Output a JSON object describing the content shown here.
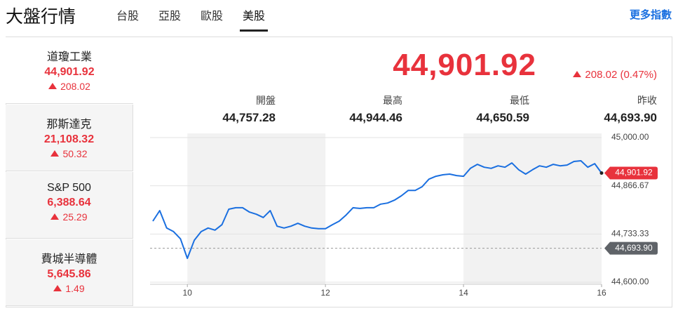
{
  "header": {
    "title": "大盤行情",
    "tabs": [
      "台股",
      "亞股",
      "歐股",
      "美股"
    ],
    "active_tab": 3,
    "more_link": "更多指數"
  },
  "indices": [
    {
      "name": "道瓊工業",
      "value": "44,901.92",
      "change": "208.02"
    },
    {
      "name": "那斯達克",
      "value": "21,108.32",
      "change": "50.32"
    },
    {
      "name": "S&P 500",
      "value": "6,388.64",
      "change": "25.29"
    },
    {
      "name": "費城半導體",
      "value": "5,645.86",
      "change": "1.49"
    }
  ],
  "selected_index": 0,
  "quote": {
    "price": "44,901.92",
    "change": "208.02 (0.47%)",
    "stats": [
      {
        "label": "開盤",
        "value": "44,757.28"
      },
      {
        "label": "最高",
        "value": "44,944.46"
      },
      {
        "label": "最低",
        "value": "44,650.59"
      },
      {
        "label": "昨收",
        "value": "44,693.90"
      }
    ]
  },
  "chart_data": {
    "type": "line",
    "x": [
      9.5,
      9.6,
      9.7,
      9.8,
      9.9,
      10.0,
      10.1,
      10.2,
      10.3,
      10.4,
      10.5,
      10.6,
      10.7,
      10.8,
      10.9,
      11.0,
      11.1,
      11.2,
      11.3,
      11.4,
      11.5,
      11.6,
      11.7,
      11.8,
      11.9,
      12.0,
      12.1,
      12.2,
      12.3,
      12.4,
      12.5,
      12.6,
      12.7,
      12.8,
      12.9,
      13.0,
      13.1,
      13.2,
      13.3,
      13.4,
      13.5,
      13.6,
      13.7,
      13.8,
      13.9,
      14.0,
      14.1,
      14.2,
      14.3,
      14.4,
      14.5,
      14.6,
      14.7,
      14.8,
      14.9,
      15.0,
      15.1,
      15.2,
      15.3,
      15.4,
      15.5,
      15.6,
      15.7,
      15.8,
      15.9,
      16.0
    ],
    "series": [
      {
        "color": "#1a6fe0",
        "values": [
          44769,
          44798,
          44750,
          44740,
          44720,
          44666,
          44716,
          44740,
          44750,
          44744,
          44759,
          44802,
          44806,
          44806,
          44794,
          44788,
          44779,
          44798,
          44755,
          44750,
          44755,
          44763,
          44755,
          44750,
          44748,
          44748,
          44759,
          44769,
          44786,
          44806,
          44804,
          44806,
          44806,
          44816,
          44819,
          44827,
          44839,
          44854,
          44854,
          44864,
          44885,
          44893,
          44897,
          44899,
          44895,
          44893,
          44915,
          44926,
          44918,
          44915,
          44922,
          44918,
          44930,
          44911,
          44899,
          44911,
          44922,
          44918,
          44926,
          44922,
          44924,
          44934,
          44936,
          44918,
          44928,
          44901.92
        ]
      }
    ],
    "xlim": [
      9.5,
      16
    ],
    "xticks": [
      10,
      12,
      14,
      16
    ],
    "ylim": [
      44600,
      45000
    ],
    "yticks": [
      {
        "value": 44600,
        "label": "44,600.00"
      },
      {
        "value": 44733.33,
        "label": "44,733.33"
      },
      {
        "value": 44866.67,
        "label": "44,866.67"
      },
      {
        "value": 45000,
        "label": "45,000.00"
      }
    ],
    "grid": true,
    "last_value_label": {
      "value": 44901.92,
      "label": "44,901.92",
      "color": "#e8323c"
    },
    "reference_line": {
      "value": 44693.9,
      "label": "44,693.90",
      "color": "#5f6368"
    }
  }
}
